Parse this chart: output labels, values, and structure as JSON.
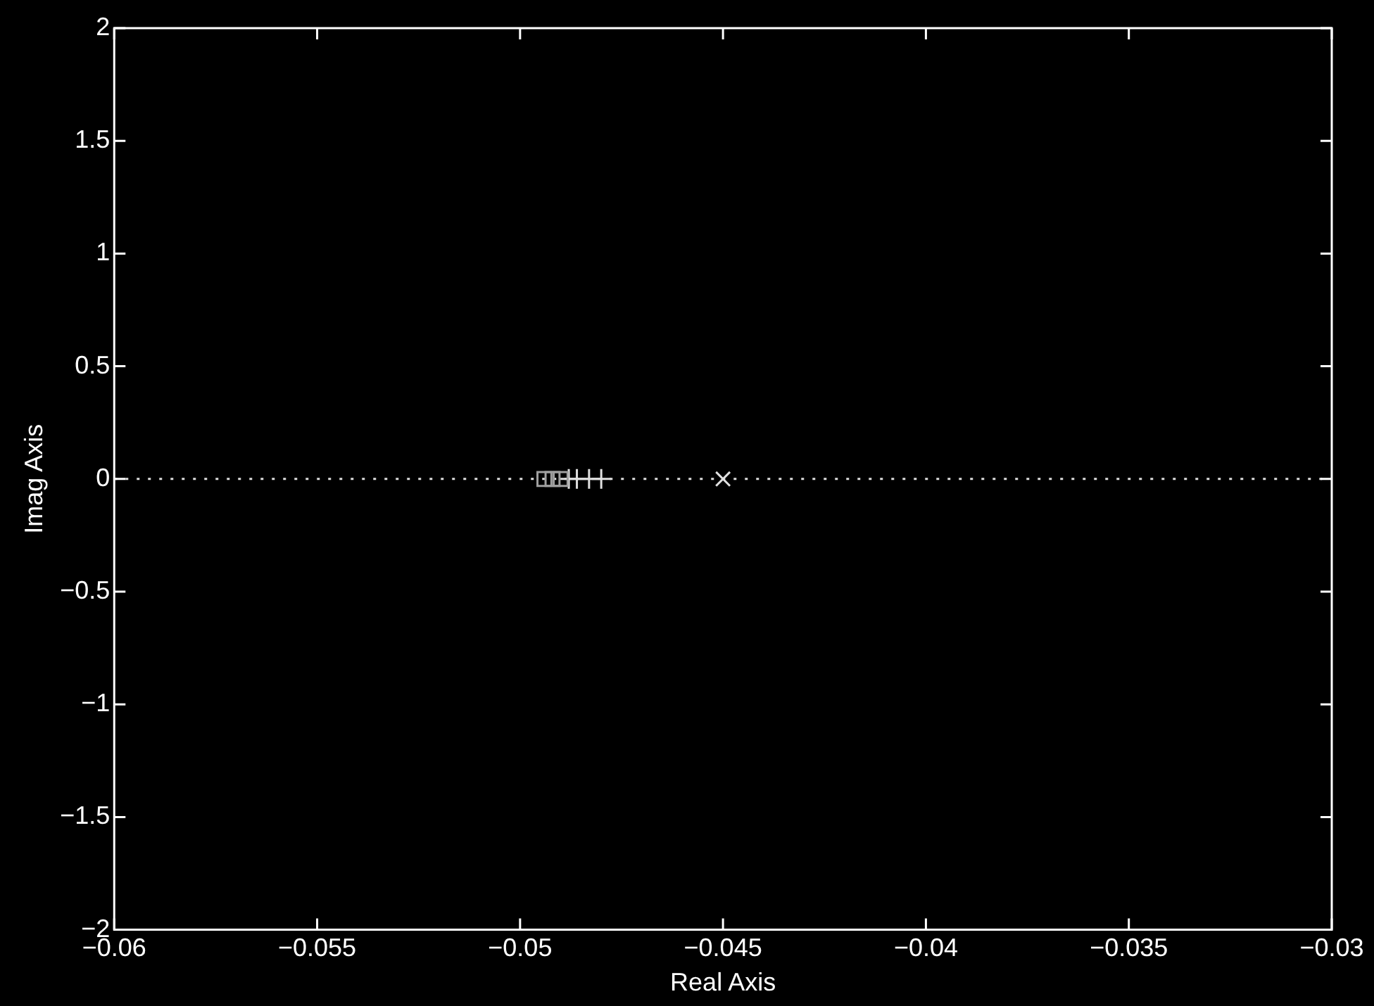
{
  "chart_data": {
    "type": "scatter",
    "xlabel": "Real Axis",
    "ylabel": "Imag Axis",
    "series": [
      {
        "color": "#a0a0a0",
        "marker": "square",
        "x": [
          -0.0494,
          -0.0492,
          -0.049
        ],
        "values": [
          0,
          0,
          0
        ]
      },
      {
        "color": "#e0e0e0",
        "marker": "cross",
        "x": [
          -0.0488,
          -0.0486,
          -0.0483,
          -0.048
        ],
        "values": [
          0,
          0,
          0,
          0
        ]
      },
      {
        "color": "#e0e0e0",
        "marker": "x",
        "x": [
          -0.045
        ],
        "values": [
          0
        ]
      }
    ],
    "xlim": [
      -0.06,
      -0.03
    ],
    "xticks": [
      {
        "value": -0.06,
        "label": "−0.06"
      },
      {
        "value": -0.055,
        "label": "−0.055"
      },
      {
        "value": -0.05,
        "label": "−0.05"
      },
      {
        "value": -0.045,
        "label": "−0.045"
      },
      {
        "value": -0.04,
        "label": "−0.04"
      },
      {
        "value": -0.035,
        "label": "−0.035"
      },
      {
        "value": -0.03,
        "label": "−0.03"
      }
    ],
    "ylim": [
      -2,
      2
    ],
    "yticks": [
      {
        "value": -2,
        "label": "−2"
      },
      {
        "value": -1.5,
        "label": "−1.5"
      },
      {
        "value": -1,
        "label": "−1"
      },
      {
        "value": -0.5,
        "label": "−0.5"
      },
      0,
      0.5,
      1,
      1.5,
      2
    ],
    "ref_lines": [
      {
        "axis": "y",
        "value": 0,
        "color": "#e0e0e0",
        "line_style": "dotted"
      }
    ],
    "grid": false,
    "legend": false
  }
}
